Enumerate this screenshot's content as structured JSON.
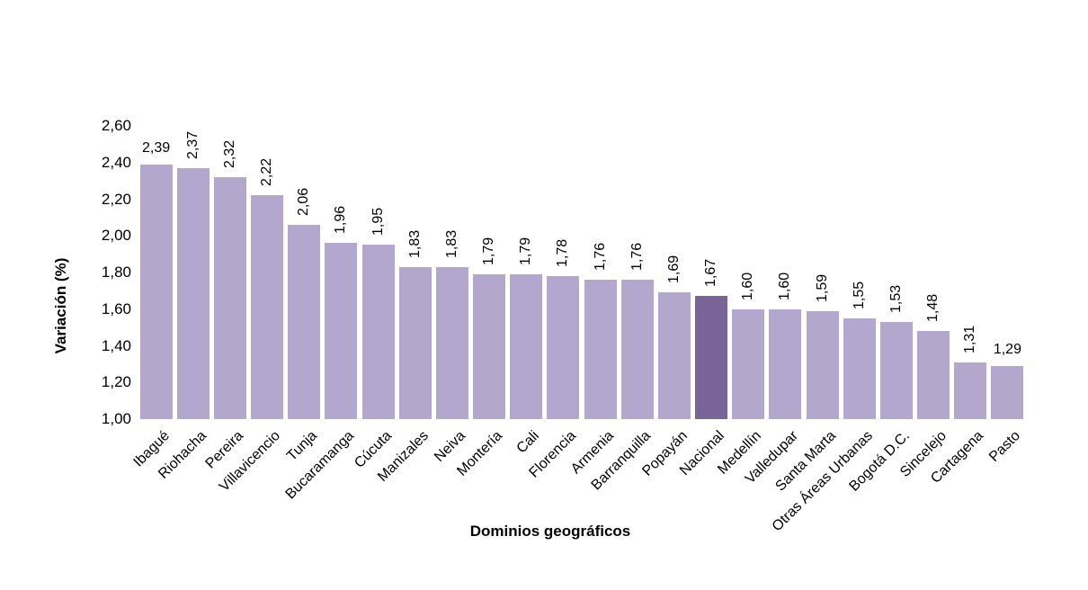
{
  "chart_data": {
    "type": "bar",
    "xlabel": "Dominios geográficos",
    "ylabel": "Variación (%)",
    "ylim": [
      1.0,
      2.6
    ],
    "ytick_step": 0.2,
    "ytick_labels": [
      "2,60",
      "2,40",
      "2,20",
      "2,00",
      "1,80",
      "1,60",
      "1,40",
      "1,20",
      "1,00"
    ],
    "decimal_separator": ",",
    "grid": false,
    "legend": "none",
    "categories": [
      "Ibagué",
      "Riohacha",
      "Pereira",
      "Villavicencio",
      "Tunja",
      "Bucaramanga",
      "Cúcuta",
      "Manizales",
      "Neiva",
      "Montería",
      "Cali",
      "Florencia",
      "Armenia",
      "Barranquilla",
      "Popayán",
      "Nacional",
      "Medellín",
      "Valledupar",
      "Santa Marta",
      "Otras Áreas Urbanas",
      "Bogotá D.C.",
      "Sincelejo",
      "Cartagena",
      "Pasto"
    ],
    "values": [
      2.39,
      2.37,
      2.32,
      2.22,
      2.06,
      1.96,
      1.95,
      1.83,
      1.83,
      1.79,
      1.79,
      1.78,
      1.76,
      1.76,
      1.69,
      1.67,
      1.6,
      1.6,
      1.59,
      1.55,
      1.53,
      1.48,
      1.31,
      1.29
    ],
    "value_labels": [
      "2,39",
      "2,37",
      "2,32",
      "2,22",
      "2,06",
      "1,96",
      "1,95",
      "1,83",
      "1,83",
      "1,79",
      "1,79",
      "1,78",
      "1,76",
      "1,76",
      "1,69",
      "1,67",
      "1,60",
      "1,60",
      "1,59",
      "1,55",
      "1,53",
      "1,48",
      "1,31",
      "1,29"
    ],
    "highlight_category": "Nacional",
    "highlight_index": 15,
    "colors": {
      "bar": "#b4a7cd",
      "highlight_bar": "#786496",
      "text": "#000000",
      "background": "#ffffff"
    },
    "value_label_orientation": {
      "default": "vertical",
      "horizontal_indices": [
        0,
        23
      ]
    },
    "xtick_rotation_deg": -45
  }
}
